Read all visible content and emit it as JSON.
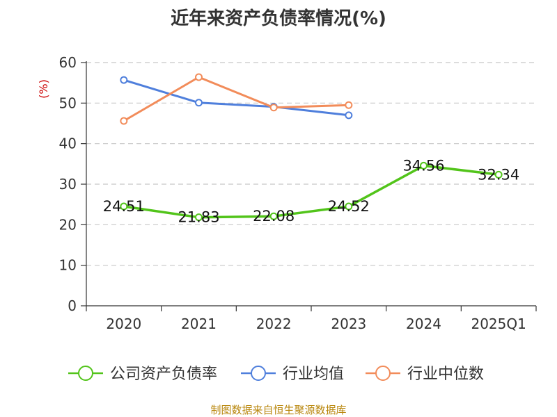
{
  "chart_data": {
    "type": "line",
    "title": "近年来资产负债率情况(%)",
    "ylabel": "(%)",
    "categories": [
      "2020",
      "2021",
      "2022",
      "2023",
      "2024",
      "2025Q1"
    ],
    "ylim": [
      0,
      60
    ],
    "yticks": [
      0,
      10,
      20,
      30,
      40,
      50,
      60
    ],
    "grid": true,
    "legend_position": "bottom",
    "series": [
      {
        "name": "公司资产负债率",
        "color": "#52c41a",
        "values": [
          24.51,
          21.83,
          22.08,
          24.52,
          34.56,
          32.34
        ],
        "labels": [
          "24.51",
          "21.83",
          "22.08",
          "24.52",
          "34.56",
          "32.34"
        ]
      },
      {
        "name": "行业均值",
        "color": "#4f7fdc",
        "values": [
          55.7,
          50.1,
          49.1,
          47.0,
          null,
          null
        ]
      },
      {
        "name": "行业中位数",
        "color": "#f28c5a",
        "values": [
          45.6,
          56.4,
          48.9,
          49.5,
          null,
          null
        ]
      }
    ]
  },
  "source": "制图数据来自恒生聚源数据库"
}
